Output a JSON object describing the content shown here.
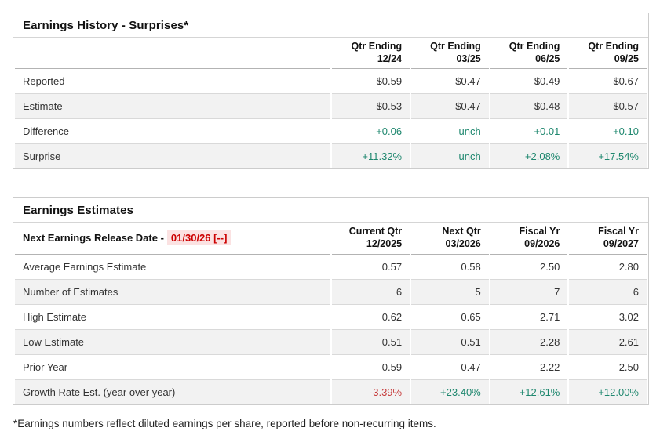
{
  "colors": {
    "positive_green": "#1e876e",
    "negative_red": "#c63b3b",
    "release_date_red": "#cc0000",
    "release_date_bg": "#fbe2e2",
    "shaded_row_bg": "#f2f2f2",
    "border_gray": "#cccccc"
  },
  "surprises_table": {
    "title": "Earnings History - Surprises*",
    "columns": [
      {
        "line1": "Qtr Ending",
        "line2": "12/24"
      },
      {
        "line1": "Qtr Ending",
        "line2": "03/25"
      },
      {
        "line1": "Qtr Ending",
        "line2": "06/25"
      },
      {
        "line1": "Qtr Ending",
        "line2": "09/25"
      }
    ],
    "rows": [
      {
        "label": "Reported",
        "cells": [
          {
            "t": "$0.59",
            "tone": "neutral"
          },
          {
            "t": "$0.47",
            "tone": "neutral"
          },
          {
            "t": "$0.49",
            "tone": "neutral"
          },
          {
            "t": "$0.67",
            "tone": "neutral"
          }
        ]
      },
      {
        "label": "Estimate",
        "cells": [
          {
            "t": "$0.53",
            "tone": "neutral"
          },
          {
            "t": "$0.47",
            "tone": "neutral"
          },
          {
            "t": "$0.48",
            "tone": "neutral"
          },
          {
            "t": "$0.57",
            "tone": "neutral"
          }
        ]
      },
      {
        "label": "Difference",
        "cells": [
          {
            "t": "+0.06",
            "tone": "positive"
          },
          {
            "t": "unch",
            "tone": "positive"
          },
          {
            "t": "+0.01",
            "tone": "positive"
          },
          {
            "t": "+0.10",
            "tone": "positive"
          }
        ]
      },
      {
        "label": "Surprise",
        "cells": [
          {
            "t": "+11.32%",
            "tone": "positive"
          },
          {
            "t": "unch",
            "tone": "positive"
          },
          {
            "t": "+2.08%",
            "tone": "positive"
          },
          {
            "t": "+17.54%",
            "tone": "positive"
          }
        ]
      }
    ]
  },
  "estimates_table": {
    "title": "Earnings Estimates",
    "release_label": "Next Earnings Release Date -",
    "release_date": "01/30/26 [--]",
    "columns": [
      {
        "line1": "Current Qtr",
        "line2": "12/2025"
      },
      {
        "line1": "Next Qtr",
        "line2": "03/2026"
      },
      {
        "line1": "Fiscal Yr",
        "line2": "09/2026"
      },
      {
        "line1": "Fiscal Yr",
        "line2": "09/2027"
      }
    ],
    "rows": [
      {
        "label": "Average Earnings Estimate",
        "cells": [
          {
            "t": "0.57",
            "tone": "neutral"
          },
          {
            "t": "0.58",
            "tone": "neutral"
          },
          {
            "t": "2.50",
            "tone": "neutral"
          },
          {
            "t": "2.80",
            "tone": "neutral"
          }
        ]
      },
      {
        "label": "Number of Estimates",
        "cells": [
          {
            "t": "6",
            "tone": "neutral"
          },
          {
            "t": "5",
            "tone": "neutral"
          },
          {
            "t": "7",
            "tone": "neutral"
          },
          {
            "t": "6",
            "tone": "neutral"
          }
        ]
      },
      {
        "label": "High Estimate",
        "cells": [
          {
            "t": "0.62",
            "tone": "neutral"
          },
          {
            "t": "0.65",
            "tone": "neutral"
          },
          {
            "t": "2.71",
            "tone": "neutral"
          },
          {
            "t": "3.02",
            "tone": "neutral"
          }
        ]
      },
      {
        "label": "Low Estimate",
        "cells": [
          {
            "t": "0.51",
            "tone": "neutral"
          },
          {
            "t": "0.51",
            "tone": "neutral"
          },
          {
            "t": "2.28",
            "tone": "neutral"
          },
          {
            "t": "2.61",
            "tone": "neutral"
          }
        ]
      },
      {
        "label": "Prior Year",
        "cells": [
          {
            "t": "0.59",
            "tone": "neutral"
          },
          {
            "t": "0.47",
            "tone": "neutral"
          },
          {
            "t": "2.22",
            "tone": "neutral"
          },
          {
            "t": "2.50",
            "tone": "neutral"
          }
        ]
      },
      {
        "label": "Growth Rate Est. (year over year)",
        "cells": [
          {
            "t": "-3.39%",
            "tone": "negative"
          },
          {
            "t": "+23.40%",
            "tone": "positive"
          },
          {
            "t": "+12.61%",
            "tone": "positive"
          },
          {
            "t": "+12.00%",
            "tone": "positive"
          }
        ]
      }
    ]
  },
  "footnote": "*Earnings numbers reflect diluted earnings per share, reported before non-recurring items."
}
